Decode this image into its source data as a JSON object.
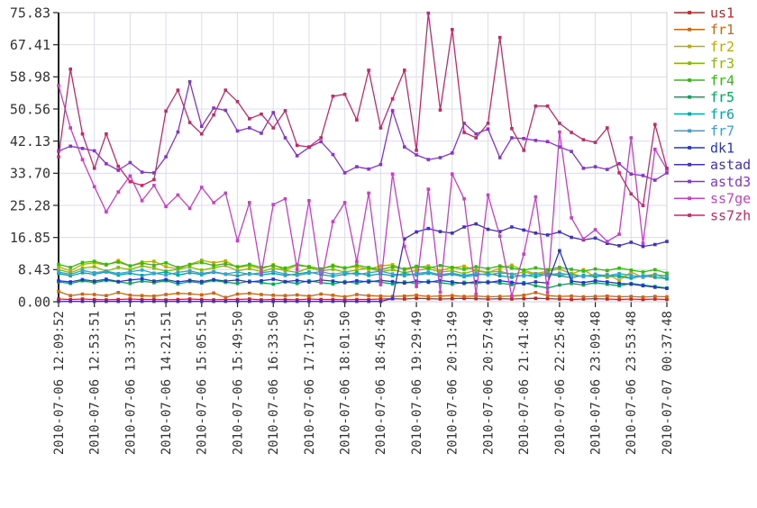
{
  "chart_data": {
    "type": "line",
    "title": "",
    "xlabel": "",
    "ylabel": "",
    "grid": true,
    "legend_position": "right-outside",
    "y_axis": {
      "min": 0,
      "max": 75.83,
      "tick_labels": [
        "0.00",
        "8.43",
        "16.85",
        "25.28",
        "33.70",
        "42.13",
        "50.56",
        "58.98",
        "67.41",
        "75.83"
      ]
    },
    "x_axis": {
      "tick_labels": [
        "2010-07-06 12:09:52",
        "2010-07-06 12:53:51",
        "2010-07-06 13:37:51",
        "2010-07-06 14:21:51",
        "2010-07-06 15:05:51",
        "2010-07-06 15:49:50",
        "2010-07-06 16:33:50",
        "2010-07-06 17:17:50",
        "2010-07-06 18:01:50",
        "2010-07-06 18:45:49",
        "2010-07-06 19:29:49",
        "2010-07-06 20:13:49",
        "2010-07-06 20:57:49",
        "2010-07-06 21:41:48",
        "2010-07-06 22:25:48",
        "2010-07-06 23:09:48",
        "2010-07-06 23:53:48",
        "2010-07-07 00:37:48"
      ]
    },
    "colors": {
      "grid": "#dcdcf0",
      "frame": "#ccccdd",
      "axis": "#222222",
      "tick_text": "#333333"
    },
    "series": [
      {
        "name": "us1",
        "color": "#cc2222",
        "values": [
          0.7,
          0.6,
          0.7,
          0.6,
          0.5,
          0.6,
          0.7,
          0.6,
          0.6,
          0.5,
          0.6,
          0.7,
          0.6,
          0.5,
          0.6,
          0.6,
          0.7,
          0.5,
          0.6,
          0.6,
          0.5,
          0.7,
          0.6,
          0.6,
          0.5,
          0.6,
          0.6,
          0.7,
          0.8,
          0.7,
          0.9,
          0.8,
          0.7,
          0.8,
          0.9,
          0.8,
          0.7,
          0.8,
          0.7,
          0.8,
          0.9,
          0.8,
          0.7,
          0.6,
          0.7,
          0.8,
          0.7,
          0.6,
          0.7,
          0.6,
          0.7,
          0.6
        ]
      },
      {
        "name": "fr1",
        "color": "#cc6611",
        "values": [
          2.7,
          1.6,
          2.0,
          1.9,
          1.6,
          2.4,
          1.7,
          1.6,
          1.5,
          1.9,
          2.2,
          2.1,
          1.8,
          2.3,
          1.1,
          2.0,
          2.2,
          1.9,
          1.7,
          1.6,
          1.8,
          1.5,
          2.0,
          1.7,
          1.3,
          1.9,
          1.6,
          1.5,
          1.4,
          1.5,
          1.7,
          1.4,
          1.5,
          1.6,
          1.4,
          1.5,
          1.3,
          1.4,
          1.5,
          1.7,
          2.4,
          1.6,
          1.4,
          1.5,
          1.3,
          1.4,
          1.5,
          1.3,
          1.4,
          1.2,
          1.4,
          1.3
        ]
      },
      {
        "name": "fr2",
        "color": "#bbaa00",
        "values": [
          9.2,
          8.1,
          9.8,
          10.2,
          9.6,
          10.8,
          9.4,
          10.4,
          10.6,
          9.2,
          8.6,
          9.8,
          10.9,
          10.2,
          10.7,
          9.0,
          9.4,
          8.6,
          9.7,
          8.3,
          9.5,
          9.2,
          8.6,
          9.6,
          8.9,
          9.2,
          8.5,
          9.4,
          9.7,
          8.4,
          9.0,
          9.4,
          8.2,
          8.9,
          9.3,
          8.1,
          7.6,
          8.8,
          9.6,
          8.2,
          7.4,
          8.0,
          8.6,
          7.3,
          8.4,
          6.5,
          7.2,
          5.6,
          7.8,
          6.4,
          7.0,
          6.8
        ]
      },
      {
        "name": "fr3",
        "color": "#88bb00",
        "values": [
          8.4,
          7.6,
          8.8,
          9.2,
          8.0,
          9.0,
          8.4,
          9.4,
          8.8,
          8.0,
          8.5,
          9.1,
          8.3,
          8.9,
          9.5,
          8.1,
          8.7,
          7.9,
          8.8,
          8.2,
          7.7,
          8.9,
          8.1,
          8.5,
          7.8,
          8.3,
          8.8,
          7.9,
          8.4,
          7.6,
          8.2,
          8.7,
          7.8,
          8.1,
          7.4,
          8.3,
          7.7,
          8.0,
          7.2,
          7.8,
          7.1,
          7.6,
          6.9,
          7.4,
          6.6,
          7.2,
          6.4,
          7.0,
          6.2,
          6.8,
          7.2,
          6.0
        ]
      },
      {
        "name": "fr4",
        "color": "#33bb11",
        "values": [
          9.8,
          9.0,
          10.3,
          10.6,
          9.8,
          10.4,
          9.4,
          10.1,
          9.6,
          10.2,
          9.0,
          9.7,
          10.3,
          9.5,
          10.0,
          9.2,
          9.8,
          9.0,
          9.5,
          8.8,
          9.8,
          9.2,
          8.6,
          9.4,
          8.8,
          9.6,
          9.0,
          8.4,
          9.2,
          8.6,
          9.3,
          8.8,
          9.5,
          9.0,
          8.5,
          9.2,
          8.7,
          9.4,
          8.8,
          8.3,
          8.9,
          8.4,
          9.0,
          8.5,
          8.0,
          8.6,
          8.2,
          8.8,
          8.3,
          7.8,
          8.4,
          7.5
        ]
      },
      {
        "name": "fr5",
        "color": "#00aa55",
        "values": [
          5.2,
          4.8,
          5.5,
          5.0,
          5.6,
          5.2,
          4.8,
          5.4,
          5.0,
          5.5,
          4.7,
          5.3,
          4.9,
          5.6,
          5.1,
          4.8,
          5.4,
          5.0,
          4.6,
          5.2,
          4.8,
          5.5,
          5.0,
          4.7,
          5.3,
          4.9,
          5.5,
          5.1,
          4.7,
          5.2,
          4.8,
          5.4,
          5.0,
          4.6,
          5.1,
          4.8,
          5.3,
          4.9,
          4.5,
          5.0,
          4.2,
          3.6,
          4.4,
          4.8,
          4.4,
          5.0,
          4.6,
          4.2,
          4.8,
          4.4,
          4.0,
          3.6
        ]
      },
      {
        "name": "fr6",
        "color": "#00a8a8",
        "values": [
          7.4,
          6.8,
          7.6,
          7.2,
          7.8,
          7.0,
          7.5,
          6.9,
          7.4,
          7.8,
          7.0,
          7.6,
          7.1,
          7.7,
          7.2,
          6.8,
          7.4,
          7.0,
          7.5,
          6.9,
          7.3,
          7.8,
          7.1,
          6.7,
          7.2,
          7.6,
          6.9,
          7.3,
          6.8,
          7.4,
          7.0,
          7.5,
          6.8,
          7.2,
          6.6,
          7.0,
          7.4,
          6.8,
          6.4,
          7.0,
          6.6,
          7.2,
          6.8,
          6.3,
          6.9,
          6.5,
          7.0,
          6.6,
          6.2,
          6.8,
          6.4,
          6.0
        ]
      },
      {
        "name": "fr7",
        "color": "#3aa0d0",
        "values": [
          7.8,
          7.2,
          8.2,
          7.6,
          8.0,
          7.4,
          7.9,
          8.3,
          7.5,
          7.0,
          7.7,
          8.1,
          7.4,
          7.9,
          7.3,
          7.8,
          7.2,
          7.6,
          8.0,
          7.3,
          6.9,
          7.5,
          7.9,
          7.2,
          7.7,
          7.1,
          7.6,
          8.0,
          7.3,
          6.8,
          7.4,
          7.8,
          7.1,
          7.5,
          6.9,
          7.4,
          7.0,
          7.6,
          7.2,
          6.7,
          7.3,
          6.9,
          7.5,
          7.0,
          6.6,
          7.2,
          6.8,
          7.4,
          6.9,
          6.5,
          7.1,
          6.7
        ]
      },
      {
        "name": "dk1",
        "color": "#2238cc",
        "values": [
          5.5,
          5.2,
          5.8,
          5.4,
          5.9,
          5.3,
          5.7,
          6.0,
          5.4,
          5.8,
          5.2,
          5.6,
          5.3,
          5.8,
          5.4,
          5.7,
          5.2,
          5.5,
          5.9,
          5.3,
          5.6,
          5.2,
          5.7,
          5.4,
          5.0,
          5.5,
          5.2,
          5.6,
          5.3,
          4.9,
          5.4,
          5.1,
          5.6,
          5.2,
          4.8,
          5.3,
          5.0,
          5.5,
          5.1,
          4.7,
          5.2,
          4.9,
          13.4,
          5.4,
          5.0,
          5.5,
          5.2,
          4.8,
          4.6,
          4.2,
          3.8,
          3.5
        ]
      },
      {
        "name": "astad",
        "color": "#4430c0",
        "values": [
          0.1,
          0.1,
          0.1,
          0.1,
          0.1,
          0.1,
          0.1,
          0.1,
          0.1,
          0.1,
          0.1,
          0.1,
          0.1,
          0.1,
          0.1,
          0.1,
          0.1,
          0.1,
          0.1,
          0.1,
          0.1,
          0.1,
          0.1,
          0.1,
          0.1,
          0.1,
          0.1,
          0.1,
          0.8,
          16.5,
          18.3,
          19.2,
          18.4,
          18.0,
          19.6,
          20.4,
          19.0,
          18.4,
          19.6,
          18.8,
          18.0,
          17.5,
          18.3,
          16.9,
          16.2,
          16.7,
          15.3,
          14.7,
          15.6,
          14.5,
          15.0,
          15.8
        ]
      },
      {
        "name": "astd3",
        "color": "#8833cc",
        "values": [
          39.5,
          40.8,
          40.2,
          39.6,
          36.2,
          34.5,
          36.5,
          34.0,
          33.8,
          38.0,
          44.5,
          57.7,
          46.0,
          50.8,
          50.2,
          44.8,
          45.6,
          44.2,
          49.6,
          43.0,
          38.3,
          40.5,
          42.0,
          38.6,
          33.8,
          35.4,
          34.8,
          36.0,
          50.1,
          40.6,
          38.5,
          37.3,
          37.8,
          39.0,
          46.8,
          44.0,
          45.3,
          37.8,
          43.0,
          42.8,
          42.3,
          42.0,
          40.6,
          39.4,
          35.0,
          35.4,
          34.7,
          36.2,
          33.5,
          33.1,
          31.9,
          33.8
        ]
      },
      {
        "name": "ss7ge",
        "color": "#cc3ccc",
        "values": [
          56.7,
          45.6,
          37.3,
          30.2,
          23.6,
          28.8,
          33.0,
          26.5,
          30.5,
          25.0,
          28.0,
          24.5,
          30.0,
          26.0,
          28.5,
          16.0,
          26.0,
          7.5,
          25.5,
          27.0,
          8.5,
          26.5,
          5.0,
          21.0,
          26.0,
          10.5,
          28.5,
          4.5,
          33.5,
          14.5,
          4.0,
          29.5,
          2.5,
          33.5,
          27.0,
          2.0,
          28.0,
          17.2,
          1.5,
          12.5,
          27.5,
          2.5,
          44.5,
          22.0,
          16.5,
          18.9,
          15.8,
          17.7,
          43.0,
          15.3,
          40.0,
          34.7
        ]
      },
      {
        "name": "ss7zh",
        "color": "#c42a68",
        "values": [
          38.0,
          61.0,
          44.0,
          35.0,
          44.0,
          35.5,
          31.5,
          30.5,
          32.0,
          50.0,
          55.5,
          47.0,
          44.0,
          49.0,
          55.5,
          52.5,
          48.0,
          49.2,
          45.6,
          50.1,
          41.0,
          40.6,
          43.0,
          53.9,
          54.4,
          47.7,
          60.7,
          45.6,
          53.2,
          60.7,
          39.7,
          75.7,
          50.3,
          71.4,
          44.4,
          43.0,
          46.8,
          69.3,
          45.4,
          39.7,
          51.3,
          51.3,
          46.8,
          44.4,
          42.5,
          41.8,
          45.6,
          33.8,
          28.3,
          25.2,
          46.5,
          35.0
        ]
      }
    ]
  }
}
